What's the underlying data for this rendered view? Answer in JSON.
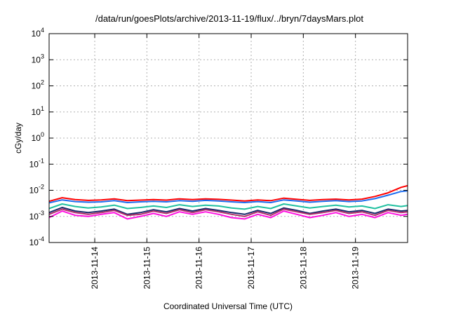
{
  "chart_data": {
    "type": "line",
    "title": "/data/run/goesPlots/archive/2013-11-19/flux/../bryn/7daysMars.plot",
    "xlabel": "Coordinated Universal Time (UTC)",
    "ylabel": "cGy/day",
    "yscale": "log",
    "ylim": [
      0.0001,
      10000
    ],
    "yticks": [
      {
        "value": 0.0001,
        "base": "10",
        "exp": "-4"
      },
      {
        "value": 0.001,
        "base": "10",
        "exp": "-3"
      },
      {
        "value": 0.01,
        "base": "10",
        "exp": "-2"
      },
      {
        "value": 0.1,
        "base": "10",
        "exp": "-1"
      },
      {
        "value": 1,
        "base": "10",
        "exp": "0"
      },
      {
        "value": 10,
        "base": "10",
        "exp": "1"
      },
      {
        "value": 100,
        "base": "10",
        "exp": "2"
      },
      {
        "value": 1000,
        "base": "10",
        "exp": "3"
      },
      {
        "value": 10000,
        "base": "10",
        "exp": "4"
      }
    ],
    "xlim": [
      "2013-11-13T03:00",
      "2013-11-20T00:00"
    ],
    "xticks": [
      "2013-11-14",
      "2013-11-15",
      "2013-11-16",
      "2013-11-17",
      "2013-11-18",
      "2013-11-19"
    ],
    "grid": true,
    "legend": "none",
    "x": [
      "2013-11-13T03:00",
      "2013-11-13T09:00",
      "2013-11-13T15:00",
      "2013-11-13T21:00",
      "2013-11-14T03:00",
      "2013-11-14T09:00",
      "2013-11-14T15:00",
      "2013-11-14T21:00",
      "2013-11-15T03:00",
      "2013-11-15T09:00",
      "2013-11-15T15:00",
      "2013-11-15T21:00",
      "2013-11-16T03:00",
      "2013-11-16T09:00",
      "2013-11-16T15:00",
      "2013-11-16T21:00",
      "2013-11-17T03:00",
      "2013-11-17T09:00",
      "2013-11-17T15:00",
      "2013-11-17T21:00",
      "2013-11-18T03:00",
      "2013-11-18T09:00",
      "2013-11-18T15:00",
      "2013-11-18T21:00",
      "2013-11-19T03:00",
      "2013-11-19T09:00",
      "2013-11-19T15:00",
      "2013-11-19T21:00",
      "2013-11-20T00:00"
    ],
    "series": [
      {
        "color": "#ff0000",
        "values": [
          0.0038,
          0.0052,
          0.0044,
          0.0041,
          0.0043,
          0.0047,
          0.004,
          0.0042,
          0.0044,
          0.0042,
          0.0047,
          0.0044,
          0.0047,
          0.0045,
          0.0042,
          0.0039,
          0.0043,
          0.004,
          0.005,
          0.0045,
          0.0041,
          0.0044,
          0.0046,
          0.0043,
          0.0046,
          0.0058,
          0.008,
          0.013,
          0.015
        ]
      },
      {
        "color": "#1e6ef0",
        "values": [
          0.0033,
          0.0043,
          0.0037,
          0.0035,
          0.0036,
          0.004,
          0.0034,
          0.0036,
          0.0038,
          0.0036,
          0.004,
          0.0038,
          0.0041,
          0.0039,
          0.0036,
          0.0034,
          0.0037,
          0.0034,
          0.0043,
          0.0039,
          0.0035,
          0.0038,
          0.004,
          0.0037,
          0.0039,
          0.0048,
          0.0065,
          0.009,
          0.0095
        ]
      },
      {
        "color": "#20c0a0",
        "values": [
          0.002,
          0.003,
          0.0024,
          0.0021,
          0.0023,
          0.0027,
          0.002,
          0.0022,
          0.0025,
          0.0022,
          0.0028,
          0.0024,
          0.0027,
          0.0025,
          0.0021,
          0.0019,
          0.0024,
          0.002,
          0.003,
          0.0025,
          0.0021,
          0.0024,
          0.0027,
          0.0023,
          0.0025,
          0.002,
          0.0028,
          0.0024,
          0.0026
        ]
      },
      {
        "color": "#1a2a6c",
        "values": [
          0.0014,
          0.0022,
          0.0016,
          0.0014,
          0.0016,
          0.0019,
          0.0012,
          0.0014,
          0.0018,
          0.0015,
          0.002,
          0.0016,
          0.002,
          0.0017,
          0.0014,
          0.0012,
          0.0017,
          0.0013,
          0.0021,
          0.0017,
          0.0013,
          0.0016,
          0.0019,
          0.0015,
          0.0017,
          0.0013,
          0.0019,
          0.0016,
          0.0017
        ]
      },
      {
        "color": "#b0306a",
        "values": [
          0.0012,
          0.0019,
          0.0014,
          0.0012,
          0.0014,
          0.0017,
          0.0011,
          0.0012,
          0.0016,
          0.0013,
          0.0018,
          0.0014,
          0.0018,
          0.0015,
          0.0012,
          0.001,
          0.0015,
          0.0011,
          0.0019,
          0.0015,
          0.0012,
          0.0014,
          0.0017,
          0.0013,
          0.0015,
          0.0011,
          0.0017,
          0.0014,
          0.0015
        ]
      },
      {
        "color": "#ff10e0",
        "values": [
          0.0009,
          0.0016,
          0.0011,
          0.001,
          0.0012,
          0.0014,
          0.0008,
          0.001,
          0.0013,
          0.001,
          0.0015,
          0.0012,
          0.0015,
          0.0012,
          0.0009,
          0.0008,
          0.0012,
          0.0009,
          0.0016,
          0.0012,
          0.0009,
          0.0011,
          0.0014,
          0.001,
          0.0012,
          0.0009,
          0.0014,
          0.0011,
          0.0012
        ]
      }
    ]
  }
}
